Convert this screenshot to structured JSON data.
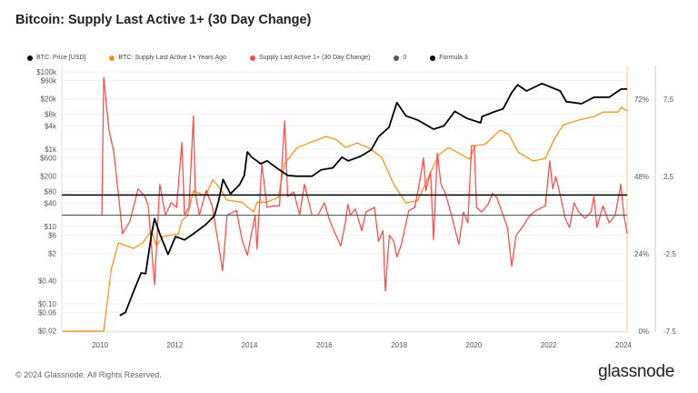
{
  "title": "Bitcoin: Supply Last Active 1+ (30 Day Change)",
  "footer": "© 2024 Glassnode. All Rights Reserved.",
  "logo": "glassnode",
  "legend": [
    {
      "label": "BTC: Price [USD]",
      "color": "#000000"
    },
    {
      "label": "BTC: Supply Last Active 1+ Years Ago",
      "color": "#f7931a"
    },
    {
      "label": "Supply Last Active 1+ (30 Day Change)",
      "color": "#ff4d4d"
    },
    {
      "label": "0",
      "color": "#555555"
    },
    {
      "label": "Formula 3",
      "color": "#000000"
    }
  ],
  "chart_data": {
    "type": "line",
    "title": "Bitcoin: Supply Last Active 1+ (30 Day Change)",
    "x_ticks": [
      "2010",
      "2012",
      "2014",
      "2016",
      "2018",
      "2020",
      "2022",
      "2024"
    ],
    "xlim": [
      2009,
      2024.1
    ],
    "left_axis": {
      "scale": "log",
      "ylim": [
        0.02,
        100000
      ],
      "ticks": [
        {
          "v": 100000,
          "l": "$100k"
        },
        {
          "v": 60000,
          "l": "$60k"
        },
        {
          "v": 20000,
          "l": "$20k"
        },
        {
          "v": 8000,
          "l": "$8k"
        },
        {
          "v": 4000,
          "l": "$4k"
        },
        {
          "v": 1000,
          "l": "$1k"
        },
        {
          "v": 600,
          "l": "$600"
        },
        {
          "v": 200,
          "l": "$200"
        },
        {
          "v": 80,
          "l": "$80"
        },
        {
          "v": 40,
          "l": "$40"
        },
        {
          "v": 10,
          "l": "$10"
        },
        {
          "v": 6,
          "l": "$6"
        },
        {
          "v": 2,
          "l": "$2"
        },
        {
          "v": 0.4,
          "l": "$0.40"
        },
        {
          "v": 0.1,
          "l": "$0.10"
        },
        {
          "v": 0.06,
          "l": "$0.06"
        },
        {
          "v": 0.02,
          "l": "$0.02"
        }
      ]
    },
    "right_axis_pct": {
      "ylim": [
        0,
        72
      ],
      "ticks": [
        "72%",
        "48%",
        "24%",
        "0%"
      ]
    },
    "right_axis_change": {
      "ylim": [
        -7.5,
        7.5
      ],
      "ticks": [
        "7.5",
        "2.5",
        "-2.5",
        "-7.5"
      ]
    },
    "grid": true,
    "legend_position": "top",
    "series": [
      {
        "name": "BTC: Price [USD]",
        "axis": "left",
        "color": "#000000",
        "x": [
          2010.53,
          2010.68,
          2010.9,
          2011.1,
          2011.22,
          2011.38,
          2011.46,
          2011.6,
          2011.82,
          2012.02,
          2012.26,
          2012.5,
          2012.82,
          2013.06,
          2013.18,
          2013.29,
          2013.49,
          2013.73,
          2013.86,
          2013.94,
          2014.06,
          2014.3,
          2014.47,
          2014.8,
          2015.02,
          2015.26,
          2015.67,
          2015.91,
          2016.23,
          2016.47,
          2016.64,
          2016.96,
          2017.25,
          2017.45,
          2017.73,
          2017.94,
          2018.18,
          2018.51,
          2018.92,
          2019.2,
          2019.49,
          2019.81,
          2020.18,
          2020.22,
          2020.54,
          2020.78,
          2021.01,
          2021.17,
          2021.41,
          2021.82,
          2022.31,
          2022.47,
          2022.88,
          2023.21,
          2023.62,
          2023.94,
          2024.1
        ],
        "y": [
          0.05,
          0.06,
          0.21,
          0.63,
          0.6,
          6.5,
          16,
          6.5,
          1.9,
          5.5,
          4.5,
          6.5,
          11,
          19,
          48,
          165,
          70,
          120,
          210,
          850,
          620,
          420,
          500,
          290,
          210,
          200,
          200,
          290,
          330,
          620,
          500,
          650,
          950,
          2100,
          3700,
          16000,
          7300,
          5600,
          3300,
          4000,
          9500,
          6300,
          4800,
          7000,
          9200,
          11000,
          29000,
          46000,
          32000,
          50000,
          32000,
          17000,
          15000,
          22000,
          22000,
          36000,
          36000
        ]
      },
      {
        "name": "BTC: Supply Last Active 1+ Years Ago",
        "axis": "pct",
        "color": "#f7931a",
        "x": [
          2009.0,
          2010.1,
          2010.3,
          2010.49,
          2010.9,
          2011.14,
          2011.38,
          2011.5,
          2011.7,
          2012.1,
          2012.18,
          2012.34,
          2012.5,
          2012.82,
          2013.02,
          2013.26,
          2013.38,
          2013.79,
          2014.11,
          2014.2,
          2014.45,
          2014.77,
          2014.94,
          2015.26,
          2015.59,
          2016.04,
          2016.32,
          2016.56,
          2016.88,
          2017.2,
          2017.53,
          2017.86,
          2018.18,
          2018.5,
          2018.75,
          2019.07,
          2019.32,
          2019.88,
          2020.05,
          2020.3,
          2020.7,
          2020.94,
          2021.18,
          2021.58,
          2021.91,
          2022.15,
          2022.39,
          2022.8,
          2023.21,
          2023.45,
          2023.86,
          2023.94,
          2024.1
        ],
        "y": [
          0,
          0,
          19,
          27.4,
          25.7,
          27.4,
          31.3,
          26.5,
          29.4,
          30.2,
          34.2,
          35.9,
          43.5,
          42,
          47,
          43.5,
          40.7,
          40,
          37,
          40,
          40,
          41.5,
          52,
          56.8,
          58.4,
          60.4,
          59.5,
          57,
          58.4,
          56.8,
          54,
          45.5,
          39.8,
          40.5,
          47,
          54.8,
          57,
          53.4,
          57.6,
          58,
          62.4,
          61,
          55.6,
          52.8,
          53.6,
          59.6,
          64,
          65.5,
          66.6,
          68,
          68,
          69.5,
          68.3
        ]
      },
      {
        "name": "Supply Last Active 1+ (30 Day Change)",
        "axis": "change",
        "color": "#ff4d4d",
        "x": [
          2009.0,
          2010.05,
          2010.1,
          2010.24,
          2010.37,
          2010.49,
          2010.6,
          2010.8,
          2011.02,
          2011.2,
          2011.29,
          2011.46,
          2011.6,
          2011.75,
          2011.9,
          2012.05,
          2012.19,
          2012.26,
          2012.38,
          2012.5,
          2012.55,
          2012.66,
          2012.84,
          2013.0,
          2013.15,
          2013.28,
          2013.4,
          2013.65,
          2013.8,
          2013.94,
          2014.15,
          2014.2,
          2014.33,
          2014.47,
          2014.63,
          2014.8,
          2014.94,
          2015.02,
          2015.18,
          2015.34,
          2015.47,
          2015.67,
          2015.83,
          2016.0,
          2016.15,
          2016.44,
          2016.56,
          2016.63,
          2016.7,
          2016.83,
          2017.0,
          2017.11,
          2017.34,
          2017.45,
          2017.57,
          2017.63,
          2017.74,
          2017.86,
          2017.94,
          2018.06,
          2018.26,
          2018.42,
          2018.56,
          2018.65,
          2018.72,
          2018.84,
          2018.92,
          2019.02,
          2019.12,
          2019.24,
          2019.4,
          2019.6,
          2019.72,
          2019.84,
          2019.94,
          2020.01,
          2020.07,
          2020.21,
          2020.38,
          2020.5,
          2020.62,
          2020.78,
          2020.9,
          2021.01,
          2021.13,
          2021.29,
          2021.5,
          2021.66,
          2021.91,
          2022.03,
          2022.11,
          2022.19,
          2022.32,
          2022.44,
          2022.56,
          2022.68,
          2022.8,
          2022.97,
          2023.13,
          2023.21,
          2023.29,
          2023.45,
          2023.62,
          2023.78,
          2023.93,
          2024.01,
          2024.1
        ],
        "y": [
          0,
          0,
          8.9,
          5.5,
          4.1,
          1.4,
          -1.2,
          -0.4,
          1.7,
          1.2,
          0.6,
          -4.5,
          2.0,
          0,
          0.8,
          0.5,
          4.7,
          0,
          0.5,
          6.4,
          1.4,
          0,
          1.6,
          0.6,
          -1.6,
          -3.6,
          0,
          0.3,
          -1.6,
          -2.6,
          0,
          -2.2,
          3.3,
          0.5,
          0.6,
          0.6,
          6.1,
          1.2,
          1.5,
          0,
          2.0,
          0,
          0,
          0.8,
          -0.4,
          -2.0,
          -0.5,
          0.7,
          0,
          0.4,
          -1.0,
          0.2,
          0.5,
          -1.7,
          -1.0,
          -4.9,
          -1.3,
          -1.7,
          -2.7,
          -1.9,
          0.3,
          0.5,
          2.3,
          3.7,
          1.6,
          2.8,
          -1.6,
          4.0,
          2.0,
          1.4,
          0,
          -1.9,
          0.2,
          -0.5,
          4.5,
          4.5,
          0.5,
          0.2,
          0.7,
          1.4,
          1.1,
          0,
          -0.8,
          -3.3,
          -1.3,
          -0.8,
          0,
          0.3,
          0.6,
          3.5,
          1.7,
          2.5,
          1.2,
          -0.2,
          -0.8,
          0.8,
          0.2,
          -0.2,
          0.2,
          1.2,
          -0.8,
          0.6,
          -0.5,
          0,
          2.0,
          0,
          -1.2
        ]
      },
      {
        "name": "0",
        "axis": "change",
        "color": "#555555",
        "constant": 0
      },
      {
        "name": "Formula 3",
        "axis": "change",
        "color": "#000000",
        "constant": 1.3
      }
    ]
  }
}
